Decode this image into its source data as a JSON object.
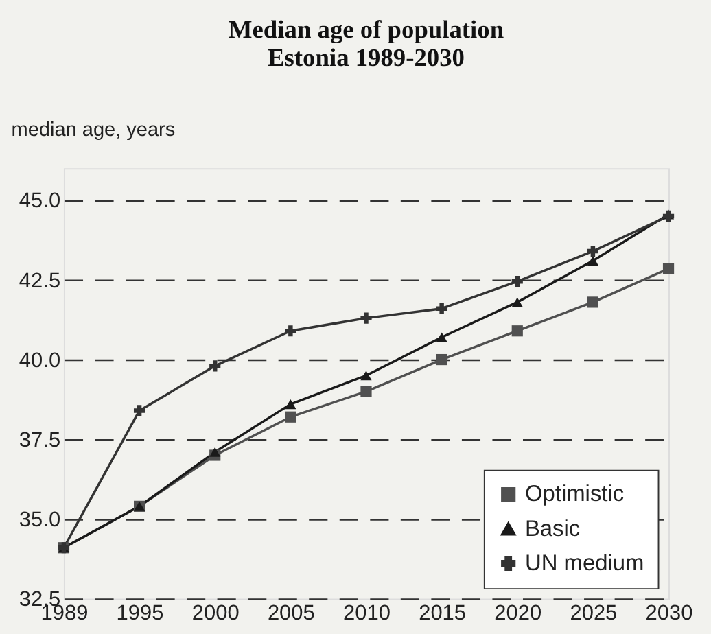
{
  "chart_data": {
    "type": "line",
    "title": "Median age of population",
    "subtitle": "Estonia 1989-2030",
    "ylabel": "median age, years",
    "categories": [
      "1989",
      "1995",
      "2000",
      "2005",
      "2010",
      "2015",
      "2020",
      "2025",
      "2030"
    ],
    "series": [
      {
        "name": "Optimistic",
        "color": "#505050",
        "marker": "square",
        "values": [
          34.1,
          35.4,
          37.0,
          38.2,
          39.0,
          40.0,
          40.9,
          41.8,
          42.85
        ]
      },
      {
        "name": "Basic",
        "color": "#1a1a1a",
        "marker": "triangle",
        "values": [
          34.1,
          35.4,
          37.1,
          38.6,
          39.5,
          40.7,
          41.8,
          43.1,
          44.55
        ]
      },
      {
        "name": "UN medium",
        "color": "#333333",
        "marker": "cross",
        "values": [
          34.1,
          38.4,
          39.8,
          40.9,
          41.3,
          41.6,
          42.45,
          43.4,
          44.5
        ]
      }
    ],
    "ylim": [
      32.5,
      46.0
    ],
    "yticks": [
      {
        "value": 32.5,
        "label": "32.5"
      },
      {
        "value": 35,
        "label": "35.0"
      },
      {
        "value": 37.5,
        "label": "37.5"
      },
      {
        "value": 40,
        "label": "40.0"
      },
      {
        "value": 42.5,
        "label": "42.5"
      },
      {
        "value": 45,
        "label": "45.0"
      }
    ],
    "grid": "y",
    "legend": "bottom right",
    "line_style": "solid"
  }
}
